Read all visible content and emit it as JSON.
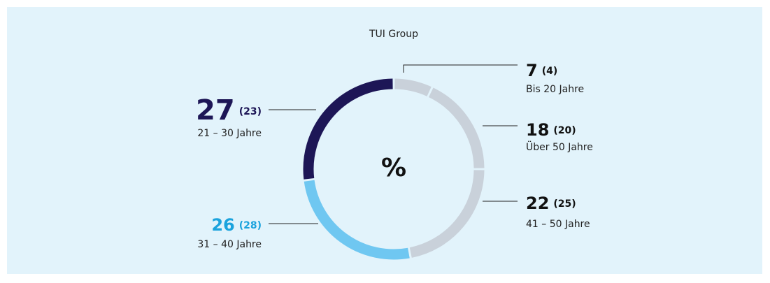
{
  "chart_data": {
    "type": "donut",
    "title": "TUI Group",
    "center_label": "%",
    "categories": [
      "Bis 20 Jahre",
      "Über 50 Jahre",
      "41 – 50 Jahre",
      "31 – 40 Jahre",
      "21 – 30 Jahre"
    ],
    "values": [
      7,
      18,
      22,
      26,
      27
    ],
    "previous_values": [
      4,
      20,
      25,
      28,
      23
    ],
    "previous_value_labels": [
      "(4)",
      "(20)",
      "(25)",
      "(28)",
      "(23)"
    ],
    "colors": [
      "#c9d1da",
      "#c9d1da",
      "#c9d1da",
      "#6fc7f1",
      "#1d1656"
    ],
    "label_colors": [
      "#111111",
      "#111111",
      "#111111",
      "#1ba3dd",
      "#1d1656"
    ]
  }
}
